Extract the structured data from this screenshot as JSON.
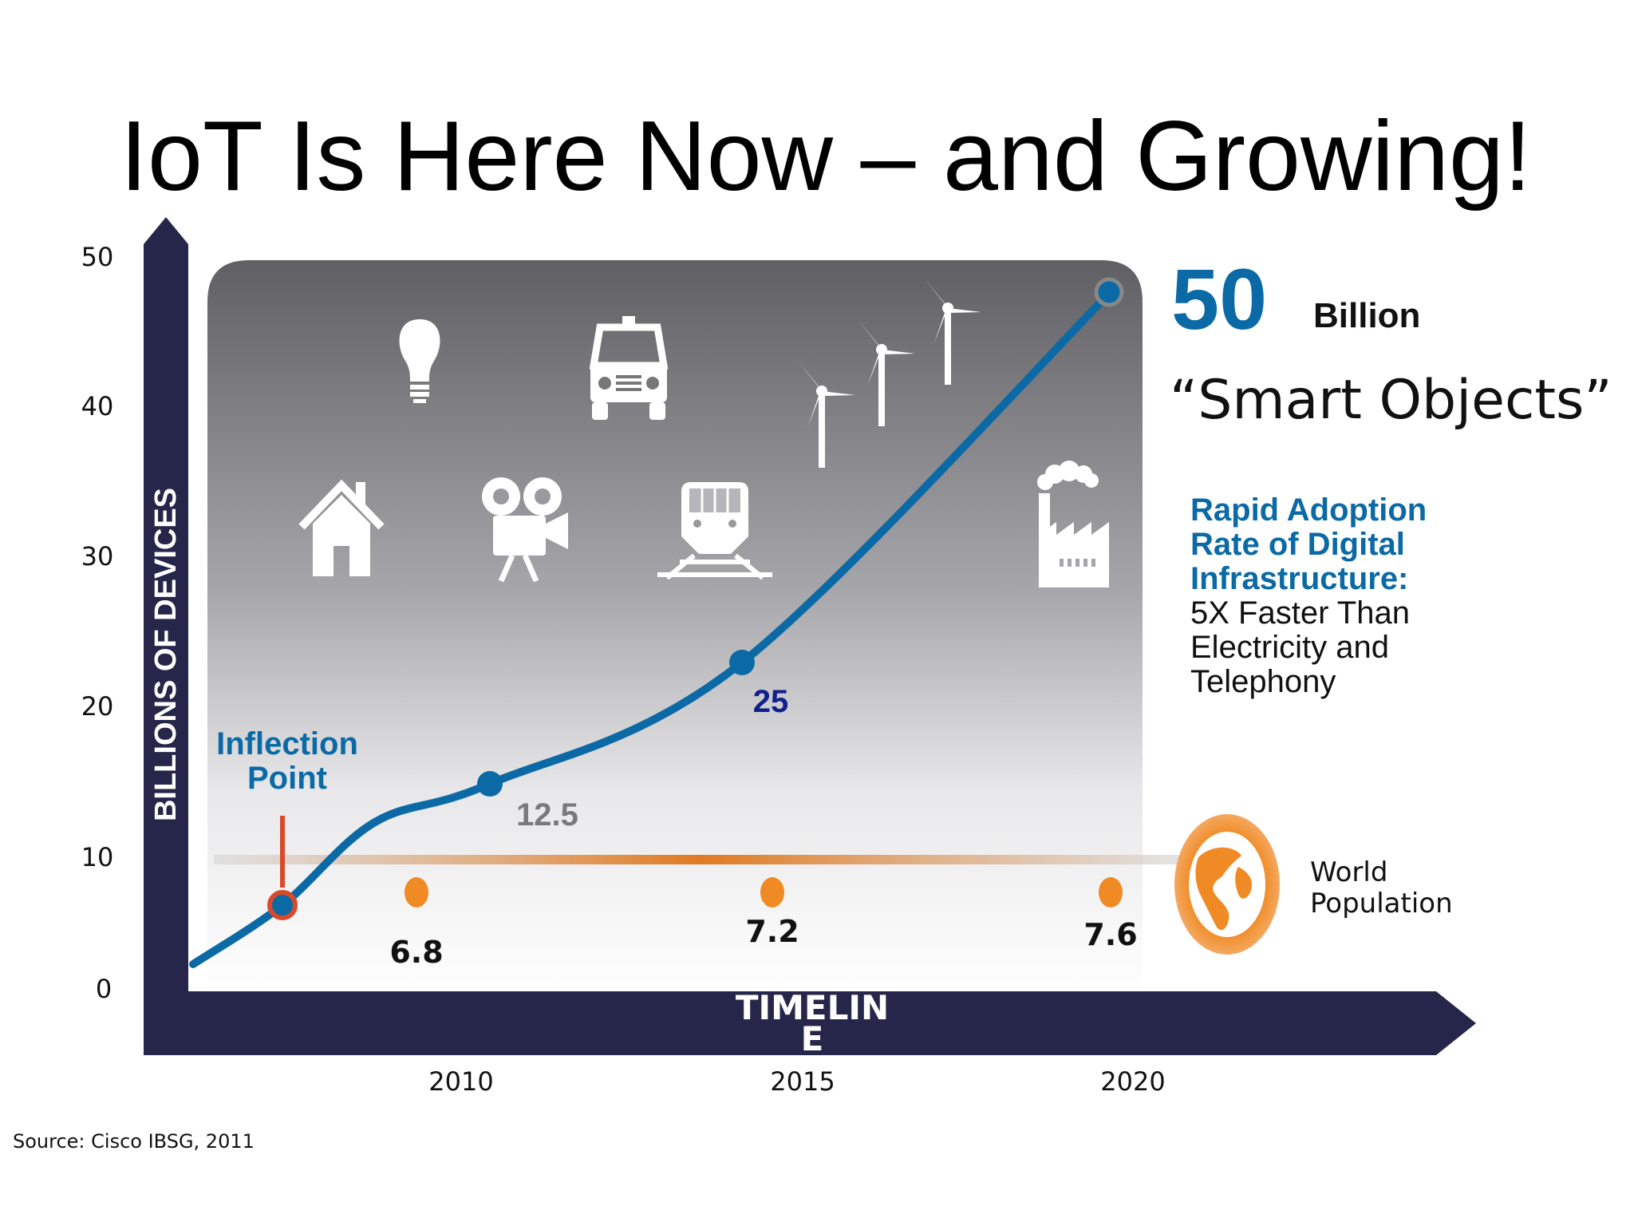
{
  "title": "IoT Is Here Now – and Growing!",
  "source": "Source: Cisco IBSG, 2011",
  "colors": {
    "axis": "#25264a",
    "iot_line": "#0b6aa5",
    "population": "#f08a24",
    "inflection": "#d94a2b",
    "accent_blue": "#0b6aa5",
    "dark_blue_label": "#11208a"
  },
  "icons": [
    "house-icon",
    "light-bulb-icon",
    "video-camera-icon",
    "car-icon",
    "train-icon",
    "wind-turbine-icon",
    "factory-icon",
    "globe-icon"
  ],
  "callout": {
    "big_number": "50",
    "unit": "Billion",
    "subtitle": "“Smart Objects”",
    "adoption_lines": [
      "Rapid Adoption",
      "Rate of Digital",
      "Infrastructure:"
    ],
    "detail_lines": [
      "5X Faster Than",
      "Electricity and",
      "Telephony"
    ]
  },
  "inflection": [
    "Inflection",
    "Point"
  ],
  "world_population": [
    "World",
    "Population"
  ],
  "chart_data": {
    "type": "line",
    "ylabel": "BILLIONS OF DEVICES",
    "xlabel": "TIMELINE",
    "y_ticks": [
      "0",
      "10",
      "20",
      "30",
      "40",
      "50"
    ],
    "x_ticks": [
      2010,
      2015,
      2020
    ],
    "ylim": [
      0,
      50
    ],
    "series": [
      {
        "name": "",
        "points": [
          {
            "x": 2003,
            "y": 1.5,
            "label": ""
          },
          {
            "x": 2008,
            "y": 5.6,
            "label": ""
          },
          {
            "x": 2011,
            "y": 12.5,
            "label": "12.5"
          },
          {
            "x": 2015,
            "y": 25,
            "label": "25"
          },
          {
            "x": 2020,
            "y": 50,
            "label": ""
          }
        ]
      },
      {
        "name": "World Population",
        "points": [
          {
            "x": 2010,
            "y": 6.8,
            "label": "6.8"
          },
          {
            "x": 2015,
            "y": 7.2,
            "label": "7.2"
          },
          {
            "x": 2020,
            "y": 7.6,
            "label": "7.6"
          }
        ]
      }
    ],
    "annotations": [
      "Inflection Point"
    ]
  }
}
